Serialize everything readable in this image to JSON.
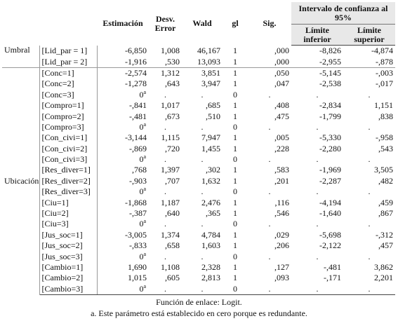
{
  "header": {
    "estimacion": "Estimación",
    "desv_error": "Desv. Error",
    "wald": "Wald",
    "gl": "gl",
    "sig": "Sig.",
    "intervalo": "Intervalo de confianza al 95%",
    "limite_inferior": "Límite inferior",
    "limite_superior": "Límite superior"
  },
  "groups": [
    {
      "label": "Umbral",
      "rows": [
        {
          "param": "[Lid_par = 1]",
          "est": "-6,850",
          "se": "1,008",
          "wald": "46,167",
          "gl": "1",
          "sig": ",000",
          "li": "-8,826",
          "ls": "-4,874"
        },
        {
          "param": "[Lid_par = 2]",
          "est": "-1,916",
          "se": ",530",
          "wald": "13,093",
          "gl": "1",
          "sig": ",000",
          "li": "-2,955",
          "ls": "-,878"
        }
      ]
    },
    {
      "label": "Ubicación",
      "rows": [
        {
          "param": "[Conc=1]",
          "est": "-2,574",
          "se": "1,312",
          "wald": "3,851",
          "gl": "1",
          "sig": ",050",
          "li": "-5,145",
          "ls": "-,003"
        },
        {
          "param": "[Conc=2]",
          "est": "-1,278",
          "se": ",643",
          "wald": "3,947",
          "gl": "1",
          "sig": ",047",
          "li": "-2,538",
          "ls": "-,017"
        },
        {
          "param": "[Conc=3]",
          "est": "0",
          "sup": "a",
          "se": ".",
          "wald": ".",
          "gl": "0",
          "sig": ".",
          "li": ".",
          "ls": "."
        },
        {
          "param": "[Compro=1]",
          "est": "-,841",
          "se": "1,017",
          "wald": ",685",
          "gl": "1",
          "sig": ",408",
          "li": "-2,834",
          "ls": "1,151"
        },
        {
          "param": "[Compro=2]",
          "est": "-,481",
          "se": ",673",
          "wald": ",510",
          "gl": "1",
          "sig": ",475",
          "li": "-1,799",
          "ls": ",838"
        },
        {
          "param": "[Compro=3]",
          "est": "0",
          "sup": "a",
          "se": ".",
          "wald": ".",
          "gl": "0",
          "sig": ".",
          "li": ".",
          "ls": "."
        },
        {
          "param": "[Con_civi=1]",
          "est": "-3,144",
          "se": "1,115",
          "wald": "7,947",
          "gl": "1",
          "sig": ",005",
          "li": "-5,330",
          "ls": "-,958"
        },
        {
          "param": "[Con_civi=2]",
          "est": "-,869",
          "se": ",720",
          "wald": "1,455",
          "gl": "1",
          "sig": ",228",
          "li": "-2,280",
          "ls": ",543"
        },
        {
          "param": "[Con_civi=3]",
          "est": "0",
          "sup": "a",
          "se": ".",
          "wald": ".",
          "gl": "0",
          "sig": ".",
          "li": ".",
          "ls": "."
        },
        {
          "param": "[Res_diver=1]",
          "est": ",768",
          "se": "1,397",
          "wald": ",302",
          "gl": "1",
          "sig": ",583",
          "li": "-1,969",
          "ls": "3,505"
        },
        {
          "param": "[Res_diver=2]",
          "est": "-,903",
          "se": ",707",
          "wald": "1,632",
          "gl": "1",
          "sig": ",201",
          "li": "-2,287",
          "ls": ",482"
        },
        {
          "param": "[Res_diver=3]",
          "est": "0",
          "sup": "a",
          "se": ".",
          "wald": ".",
          "gl": "0",
          "sig": ".",
          "li": ".",
          "ls": "."
        },
        {
          "param": "[Ciu=1]",
          "est": "-1,868",
          "se": "1,187",
          "wald": "2,476",
          "gl": "1",
          "sig": ",116",
          "li": "-4,194",
          "ls": ",459"
        },
        {
          "param": "[Ciu=2]",
          "est": "-,387",
          "se": ",640",
          "wald": ",365",
          "gl": "1",
          "sig": ",546",
          "li": "-1,640",
          "ls": ",867"
        },
        {
          "param": "[Ciu=3]",
          "est": "0",
          "sup": "a",
          "se": ".",
          "wald": ".",
          "gl": "0",
          "sig": ".",
          "li": ".",
          "ls": "."
        },
        {
          "param": "[Jus_soc=1]",
          "est": "-3,005",
          "se": "1,374",
          "wald": "4,784",
          "gl": "1",
          "sig": ",029",
          "li": "-5,698",
          "ls": "-,312"
        },
        {
          "param": "[Jus_soc=2]",
          "est": "-,833",
          "se": ",658",
          "wald": "1,603",
          "gl": "1",
          "sig": ",206",
          "li": "-2,122",
          "ls": ",457"
        },
        {
          "param": "[Jus_soc=3]",
          "est": "0",
          "sup": "a",
          "se": ".",
          "wald": ".",
          "gl": "0",
          "sig": ".",
          "li": ".",
          "ls": "."
        },
        {
          "param": "[Cambio=1]",
          "est": "1,690",
          "se": "1,108",
          "wald": "2,328",
          "gl": "1",
          "sig": ",127",
          "li": "-,481",
          "ls": "3,862"
        },
        {
          "param": "[Cambio=2]",
          "est": "1,015",
          "se": ",605",
          "wald": "2,813",
          "gl": "1",
          "sig": ",093",
          "li": "-,171",
          "ls": "2,201"
        },
        {
          "param": "[Cambio=3]",
          "est": "0",
          "sup": "a",
          "se": ".",
          "wald": ".",
          "gl": "0",
          "sig": ".",
          "li": ".",
          "ls": "."
        }
      ]
    }
  ],
  "footnotes": {
    "link": "Función de enlace: Logit.",
    "note_a": "a. Este parámetro está establecido en cero porque es redundante."
  }
}
